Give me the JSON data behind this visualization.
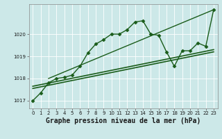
{
  "title": "Graphe pression niveau de la mer (hPa)",
  "bg_color": "#cce8e8",
  "grid_color": "#b0d8d8",
  "line_color": "#1a5c1a",
  "ylim": [
    1016.65,
    1021.35
  ],
  "xlim": [
    -0.5,
    23.5
  ],
  "yticks": [
    1017,
    1018,
    1019,
    1020
  ],
  "xticks": [
    0,
    1,
    2,
    3,
    4,
    5,
    6,
    7,
    8,
    9,
    10,
    11,
    12,
    13,
    14,
    15,
    16,
    17,
    18,
    19,
    20,
    21,
    22,
    23
  ],
  "main_line_x": [
    0,
    1,
    2,
    3,
    4,
    5,
    6,
    7,
    8,
    9,
    10,
    11,
    12,
    13,
    14,
    15,
    16,
    17,
    18,
    19,
    20,
    21,
    22,
    23
  ],
  "main_line_y": [
    1017.0,
    1017.35,
    1017.8,
    1018.0,
    1018.05,
    1018.15,
    1018.55,
    1019.15,
    1019.55,
    1019.75,
    1020.0,
    1020.0,
    1020.2,
    1020.55,
    1020.6,
    1020.0,
    1019.95,
    1019.2,
    1018.55,
    1019.25,
    1019.25,
    1019.6,
    1019.45,
    1021.1
  ],
  "trend_line1_x": [
    0,
    23
  ],
  "trend_line1_y": [
    1017.55,
    1019.2
  ],
  "trend_line2_x": [
    0,
    23
  ],
  "trend_line2_y": [
    1017.65,
    1019.3
  ],
  "trend_line3_x": [
    2,
    23
  ],
  "trend_line3_y": [
    1018.0,
    1021.1
  ],
  "marker": "D",
  "markersize": 2.5,
  "linewidth_main": 1.0,
  "linewidth_trend1": 1.2,
  "linewidth_trend2": 1.2,
  "linewidth_trend3": 1.0,
  "title_fontsize": 7.0,
  "tick_fontsize": 5.0,
  "ylabel_fontsize": 6.0
}
